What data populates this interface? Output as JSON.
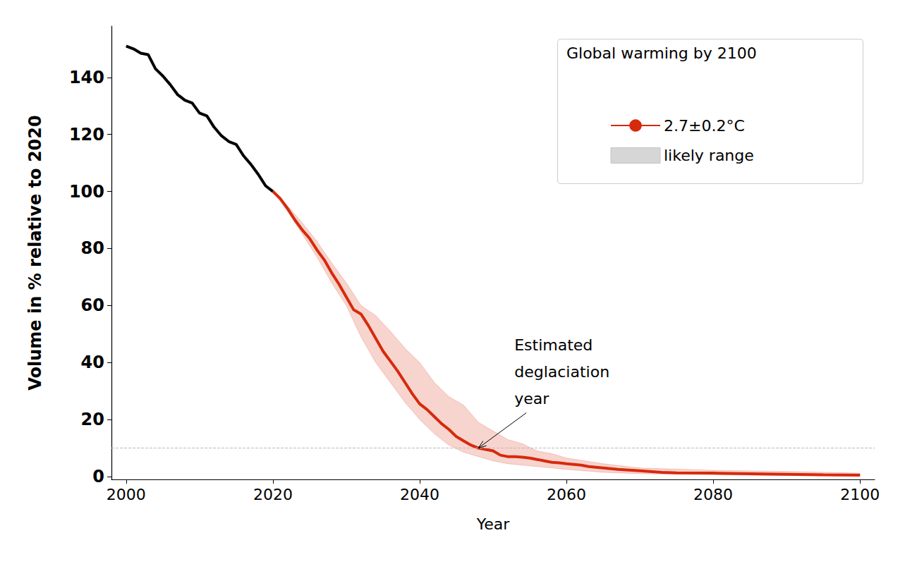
{
  "chart_data": {
    "type": "line",
    "x_label": "Year",
    "y_label": "Volume in % relative to 2020",
    "xlim": [
      1998,
      2102
    ],
    "ylim": [
      -1,
      158
    ],
    "xticks": [
      2000,
      2020,
      2040,
      2060,
      2080,
      2100
    ],
    "yticks": [
      0,
      20,
      40,
      60,
      80,
      100,
      120,
      140
    ],
    "grid": false,
    "legend": "upper right",
    "legend_title": "Global warming by 2100",
    "series": [
      {
        "color": "#000000",
        "x": [
          2000,
          2001,
          2002,
          2003,
          2004,
          2005,
          2006,
          2007,
          2008,
          2009,
          2010,
          2011,
          2012,
          2013,
          2014,
          2015,
          2016,
          2017,
          2018,
          2019,
          2020
        ],
        "values": [
          151,
          150,
          148.5,
          148,
          143,
          140.5,
          137.5,
          134,
          132,
          131,
          127.5,
          126.5,
          122.5,
          119.5,
          117.5,
          116.5,
          112.5,
          109.5,
          106,
          102,
          100
        ]
      },
      {
        "name": "2.7±0.2°C",
        "color": "#d62a0c",
        "x": [
          2020,
          2021,
          2022,
          2023,
          2024,
          2025,
          2026,
          2027,
          2028,
          2029,
          2030,
          2031,
          2032,
          2033,
          2034,
          2035,
          2036,
          2037,
          2038,
          2039,
          2040,
          2041,
          2042,
          2043,
          2044,
          2045,
          2046,
          2047,
          2048,
          2049,
          2050,
          2051,
          2052,
          2053,
          2054,
          2055,
          2056,
          2057,
          2058,
          2059,
          2060,
          2062,
          2063,
          2065,
          2067,
          2070,
          2073,
          2075,
          2080,
          2085,
          2090,
          2095,
          2100
        ],
        "values": [
          100,
          97.5,
          94,
          90,
          86.5,
          83.5,
          79.5,
          76,
          71.5,
          67.5,
          63,
          58.5,
          57,
          53,
          48.5,
          44,
          40.5,
          37,
          33,
          29,
          25.5,
          23.5,
          21,
          18.5,
          16.5,
          14,
          12.5,
          11,
          10,
          9.5,
          9,
          7.5,
          7,
          7,
          6.8,
          6.5,
          6,
          5.5,
          5,
          4.8,
          4.5,
          4,
          3.5,
          3,
          2.5,
          2,
          1.5,
          1.3,
          1.2,
          1,
          0.8,
          0.6,
          0.5
        ]
      },
      {
        "name": "likely range",
        "type": "band",
        "color": "#d62a0c",
        "x": [
          2020,
          2022,
          2024,
          2026,
          2028,
          2030,
          2032,
          2034,
          2036,
          2038,
          2040,
          2042,
          2044,
          2046,
          2048,
          2050,
          2052,
          2054,
          2056,
          2058,
          2060,
          2065,
          2070,
          2080,
          2090,
          2100
        ],
        "lower": [
          100,
          93,
          85,
          77,
          68,
          60,
          49,
          40,
          33,
          26,
          20,
          15,
          11,
          8.5,
          7,
          5.5,
          4.5,
          4,
          3.5,
          3,
          2.5,
          1.5,
          1,
          0.6,
          0.3,
          0.2
        ],
        "upper": [
          100,
          95,
          89,
          82.5,
          75,
          68,
          60,
          56.5,
          51,
          45,
          40,
          33,
          28,
          25,
          19,
          16,
          13,
          11.5,
          9,
          8,
          6.5,
          4.5,
          3,
          2.2,
          1.8,
          1.2
        ]
      }
    ],
    "reference_line": {
      "y": 10
    },
    "annotations": [
      {
        "text": "Estimated\ndeglaciation\nyear",
        "x": 2048,
        "y": 10
      }
    ]
  }
}
